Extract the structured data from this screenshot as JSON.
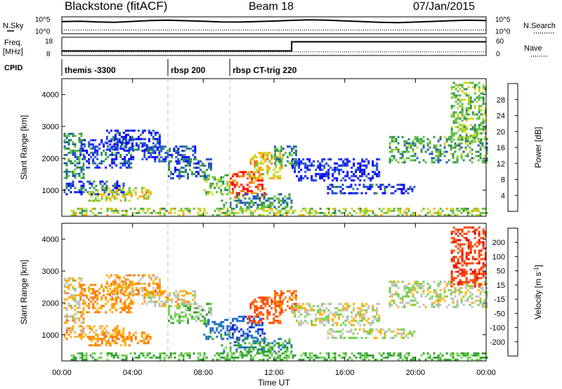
{
  "header": {
    "station": "Blackstone (fitACF)",
    "beam": "Beam 18",
    "date": "07/Jan/2015"
  },
  "sky_panel": {
    "left_label": "N.Sky",
    "left_ticks": [
      "10^5",
      "10^0"
    ],
    "right_ticks": [
      "10^5",
      "10^0"
    ],
    "right_label": "N.Search",
    "n_sky_trace": [
      0.72,
      0.74,
      0.7,
      0.68,
      0.73,
      0.78,
      0.8,
      0.77,
      0.74,
      0.7,
      0.69,
      0.72,
      0.75,
      0.79,
      0.82,
      0.8,
      0.76,
      0.72,
      0.68,
      0.66,
      0.69,
      0.73,
      0.77,
      0.8,
      0.78
    ],
    "n_search_level": 0.22
  },
  "freq_panel": {
    "left_label_1": "Freq.",
    "left_label_2": "[MHz]",
    "left_ticks": [
      "18",
      "8"
    ],
    "right_ticks": [
      "60",
      "0"
    ],
    "right_label": "Nave",
    "freq_before": 10.5,
    "freq_after": 15.5,
    "freq_switch_hour": 13.0,
    "nave_level": 0.2
  },
  "cpid": {
    "label": "CPID",
    "segments": [
      {
        "start_hour": 0.0,
        "label": "themis -3300"
      },
      {
        "start_hour": 6.0,
        "label": "rbsp 200"
      },
      {
        "start_hour": 9.5,
        "label": "rbsp CT-trig 220"
      }
    ]
  },
  "chart_data": [
    {
      "type": "heatmap",
      "title": "",
      "xlabel": "",
      "ylabel": "Slant Range [km]",
      "x_range": [
        0,
        24
      ],
      "ylim": [
        180,
        4500
      ],
      "yticks": [
        "1000",
        "2000",
        "3000",
        "4000"
      ],
      "colorbar": {
        "label": "Power [dB]",
        "ticks": [
          "4",
          "8",
          "12",
          "16",
          "20",
          "24",
          "28"
        ],
        "colors": [
          "#0000ff",
          "#1f4fd0",
          "#2e8b57",
          "#5fbf3f",
          "#c8d820",
          "#ffa500",
          "#ff6a00",
          "#ff0000"
        ]
      }
    },
    {
      "type": "heatmap",
      "title": "",
      "xlabel": "Time UT",
      "ylabel": "Slant Range [km]",
      "x_range": [
        0,
        24
      ],
      "xticks": [
        "00:00",
        "04:00",
        "08:00",
        "12:00",
        "16:00",
        "20:00",
        "00:00"
      ],
      "ylim": [
        180,
        4500
      ],
      "yticks": [
        "1000",
        "2000",
        "3000",
        "4000"
      ],
      "colorbar": {
        "label": "Velocity [m s^-1]",
        "ticks": [
          "200",
          "100",
          "50",
          "15",
          "-15",
          "-50",
          "-100",
          "-200"
        ],
        "colors": [
          "#1a1acc",
          "#1f6fd0",
          "#2fa02f",
          "#6ed24a",
          "#c0c0c0",
          "#ffb000",
          "#ff7a00",
          "#ff4000",
          "#e00000"
        ]
      }
    }
  ],
  "echo_regions": [
    {
      "t": [
        0.1,
        1.2
      ],
      "r": [
        1400,
        2800
      ],
      "p": 10,
      "v": -15
    },
    {
      "t": [
        0.1,
        3.5
      ],
      "r": [
        900,
        1300
      ],
      "p": 6,
      "v": -40
    },
    {
      "t": [
        1.0,
        4.0
      ],
      "r": [
        1700,
        2600
      ],
      "p": 5,
      "v": -60
    },
    {
      "t": [
        1.5,
        5.0
      ],
      "r": [
        700,
        1100
      ],
      "p": 18,
      "v": -60
    },
    {
      "t": [
        2.5,
        5.5
      ],
      "r": [
        2300,
        2900
      ],
      "p": 4,
      "v": -40
    },
    {
      "t": [
        4.5,
        7.5
      ],
      "r": [
        1900,
        2400
      ],
      "p": 5,
      "v": -20
    },
    {
      "t": [
        6.0,
        8.5
      ],
      "r": [
        1400,
        2000
      ],
      "p": 8,
      "v": 30
    },
    {
      "t": [
        8.0,
        9.5
      ],
      "r": [
        900,
        1500
      ],
      "p": 14,
      "v": 120
    },
    {
      "t": [
        9.5,
        11.5
      ],
      "r": [
        800,
        1600
      ],
      "p": 28,
      "v": 180
    },
    {
      "t": [
        10.5,
        12.5
      ],
      "r": [
        1400,
        2200
      ],
      "p": 20,
      "v": -120
    },
    {
      "t": [
        9.0,
        13.0
      ],
      "r": [
        500,
        900
      ],
      "p": 10,
      "v": 80
    },
    {
      "t": [
        12.0,
        13.2
      ],
      "r": [
        1800,
        2400
      ],
      "p": 10,
      "v": -80
    },
    {
      "t": [
        13.0,
        18.0
      ],
      "r": [
        1300,
        2000
      ],
      "p": 3,
      "v": 0
    },
    {
      "t": [
        15.0,
        20.0
      ],
      "r": [
        900,
        1200
      ],
      "p": 4,
      "v": 10
    },
    {
      "t": [
        18.5,
        24.0
      ],
      "r": [
        1900,
        2700
      ],
      "p": 12,
      "v": 5
    },
    {
      "t": [
        22.0,
        24.0
      ],
      "r": [
        2500,
        4400
      ],
      "p": 14,
      "v": -180
    },
    {
      "t": [
        0.5,
        24.0
      ],
      "r": [
        200,
        450
      ],
      "p": 16,
      "v": 60
    }
  ]
}
